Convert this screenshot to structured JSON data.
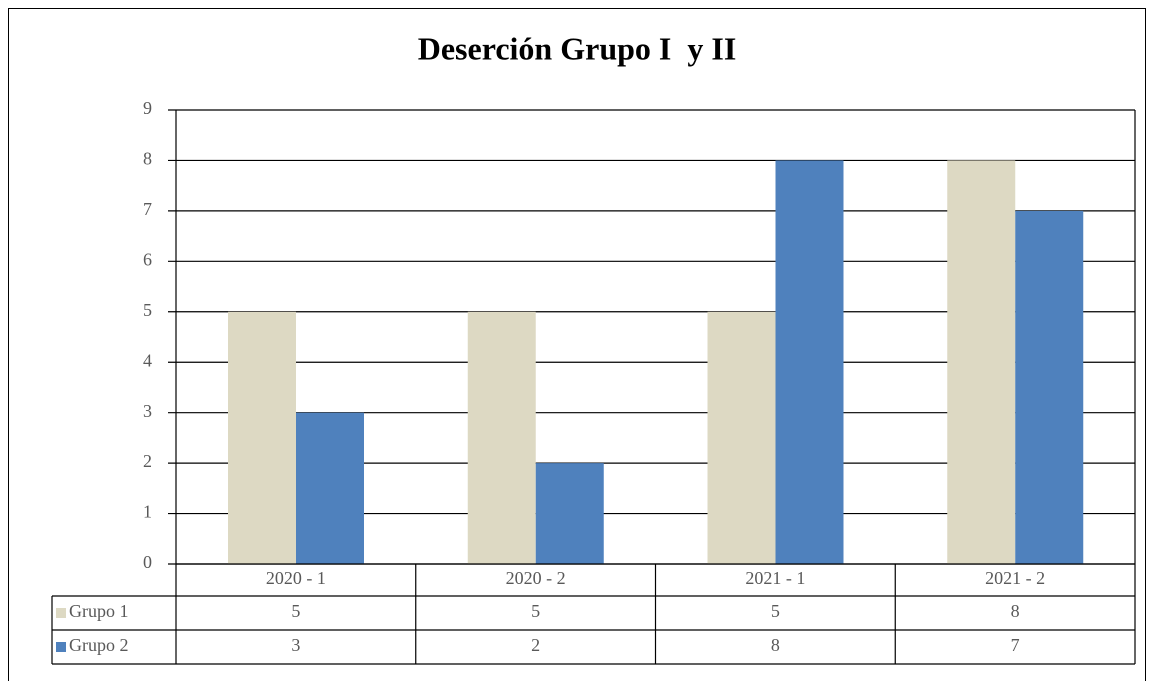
{
  "chart_data": {
    "type": "bar",
    "title": "Deserción Grupo I  y II",
    "categories": [
      "2020 - 1",
      "2020 - 2",
      "2021 - 1",
      "2021 - 2"
    ],
    "series": [
      {
        "name": "Grupo 1",
        "color": "#ddd9c3",
        "values": [
          5,
          5,
          5,
          8
        ]
      },
      {
        "name": "Grupo 2",
        "color": "#4f81bd",
        "values": [
          3,
          2,
          8,
          7
        ]
      }
    ],
    "ylim": [
      0,
      9
    ],
    "yticks": [
      0,
      1,
      2,
      3,
      4,
      5,
      6,
      7,
      8,
      9
    ],
    "grid": true,
    "data_table": true
  }
}
